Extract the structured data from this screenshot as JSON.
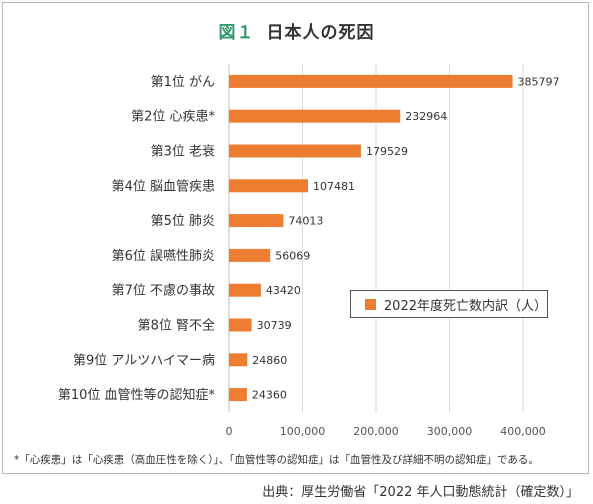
{
  "figure": {
    "label": "図１",
    "title": "日本人の死因"
  },
  "legend": {
    "text": "2022年度死亡数内訳（人）"
  },
  "footnote": "*「心疾患」は「心疾患（高血圧性を除く）」、「血管性等の認知症」は「血管性及び詳細不明の認知症」である。",
  "source": "出典：厚生労働省「2022 年人口動態統計（確定数）」",
  "colors": {
    "bar": "#ed7d31",
    "title_accent": "#2f9a6a",
    "grid": "#d9d9d9"
  },
  "chart_data": {
    "type": "bar",
    "orientation": "horizontal",
    "categories": [
      "第1位 がん",
      "第2位 心疾患*",
      "第3位 老衰",
      "第4位 脳血管疾患",
      "第5位 肺炎",
      "第6位 誤嚥性肺炎",
      "第7位 不慮の事故",
      "第8位 腎不全",
      "第9位 アルツハイマー病",
      "第10位 血管性等の認知症*"
    ],
    "series": [
      {
        "name": "2022年度死亡数内訳（人）",
        "values": [
          385797,
          232964,
          179529,
          107481,
          74013,
          56069,
          43420,
          30739,
          24860,
          24360
        ]
      }
    ],
    "value_labels": [
      "385797",
      "232964",
      "179529",
      "107481",
      "74013",
      "56069",
      "43420",
      "30739",
      "24860",
      "24360"
    ],
    "xlim": [
      0,
      400000
    ],
    "ticks": [
      0,
      100000,
      200000,
      300000,
      400000
    ],
    "tick_labels": [
      "0",
      "100,000",
      "200,000",
      "300,000",
      "400,000"
    ],
    "grid": true,
    "legend_position": "right"
  }
}
